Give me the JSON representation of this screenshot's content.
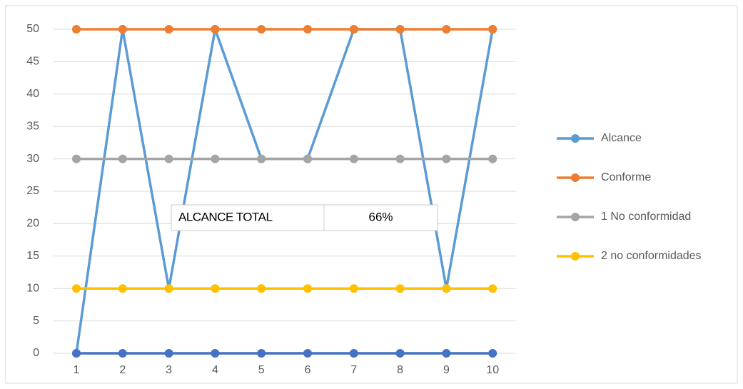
{
  "chart_data": {
    "type": "line",
    "categories": [
      "1",
      "2",
      "3",
      "4",
      "5",
      "6",
      "7",
      "8",
      "9",
      "10"
    ],
    "series": [
      {
        "name": "Alcance",
        "color": "#5b9bd5",
        "values": [
          0,
          50,
          10,
          50,
          30,
          30,
          50,
          50,
          10,
          50
        ]
      },
      {
        "name": "Conforme",
        "color": "#ed7d31",
        "values": [
          50,
          50,
          50,
          50,
          50,
          50,
          50,
          50,
          50,
          50
        ]
      },
      {
        "name": "1 No conformidad",
        "color": "#a5a5a5",
        "values": [
          30,
          30,
          30,
          30,
          30,
          30,
          30,
          30,
          30,
          30
        ]
      },
      {
        "name": "2 no conformidades",
        "color": "#ffc000",
        "values": [
          10,
          10,
          10,
          10,
          10,
          10,
          10,
          10,
          10,
          10
        ]
      },
      {
        "color": "#4472c4",
        "values": [
          0,
          0,
          0,
          0,
          0,
          0,
          0,
          0,
          0,
          0
        ]
      }
    ],
    "ylim": [
      0,
      50
    ],
    "yticks": [
      0,
      5,
      10,
      15,
      20,
      25,
      30,
      35,
      40,
      45,
      50
    ],
    "grid": true,
    "legend": "right",
    "annotation": [
      "ALCANCE TOTAL",
      "66%"
    ]
  }
}
